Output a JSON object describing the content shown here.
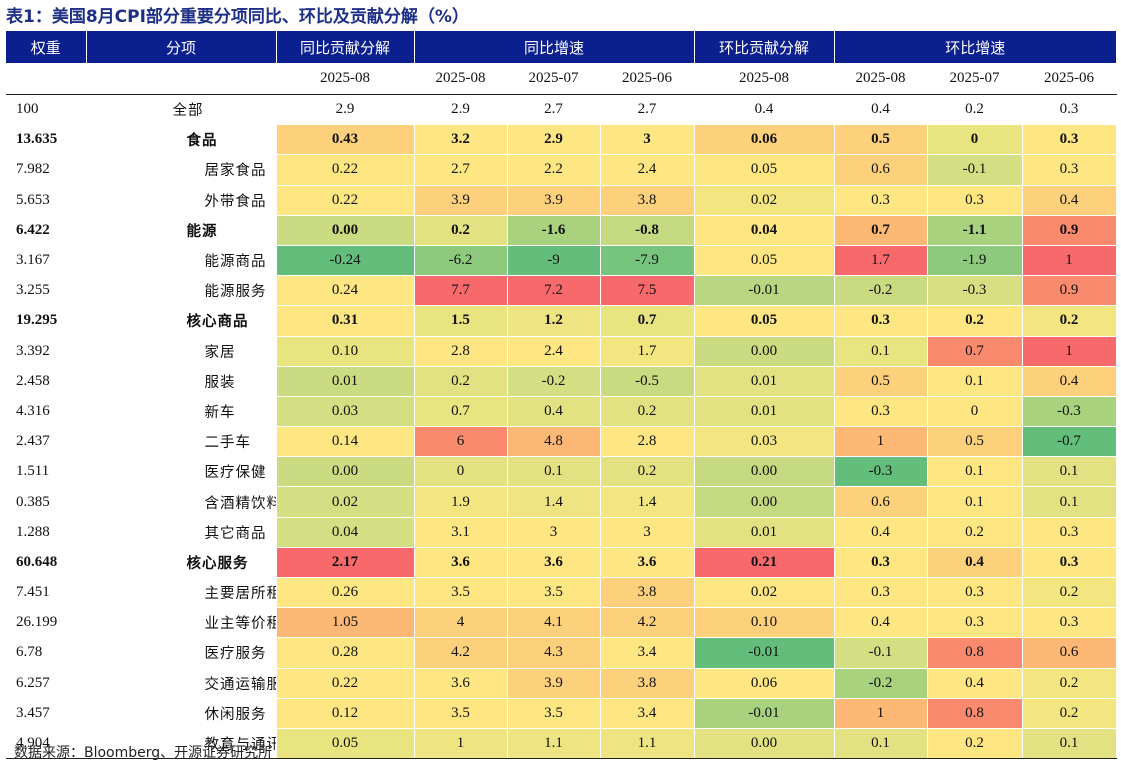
{
  "title": "表1：美国8月CPI部分重要分项同比、环比及贡献分解（%）",
  "header": {
    "weight": "权重",
    "item": "分项",
    "yoy_contrib": "同比贡献分解",
    "yoy_growth": "同比增速",
    "mom_contrib": "环比贡献分解",
    "mom_growth": "环比增速"
  },
  "periods": [
    "2025-08",
    "2025-08",
    "2025-07",
    "2025-06",
    "2025-08",
    "2025-08",
    "2025-07",
    "2025-06"
  ],
  "rows": [
    {
      "weight": "100",
      "name": "全部",
      "level": 0,
      "bold": false,
      "values": [
        "2.9",
        "2.9",
        "2.7",
        "2.7",
        "0.4",
        "0.4",
        "0.2",
        "0.3"
      ],
      "colors": [
        "#ffffff",
        "#ffffff",
        "#ffffff",
        "#ffffff",
        "#ffffff",
        "#ffffff",
        "#ffffff",
        "#ffffff"
      ]
    },
    {
      "weight": "13.635",
      "name": "食品",
      "level": 1,
      "bold": true,
      "values": [
        "0.43",
        "3.2",
        "2.9",
        "3",
        "0.06",
        "0.5",
        "0",
        "0.3"
      ],
      "colors": [
        "#fdd07c",
        "#fee783",
        "#fee783",
        "#fee783",
        "#fdd07c",
        "#fdd07c",
        "#e8e480",
        "#fee783"
      ]
    },
    {
      "weight": "7.982",
      "name": "居家食品",
      "level": 2,
      "bold": false,
      "values": [
        "0.22",
        "2.7",
        "2.2",
        "2.4",
        "0.05",
        "0.6",
        "-0.1",
        "0.3"
      ],
      "colors": [
        "#fee783",
        "#fee783",
        "#fee783",
        "#fee783",
        "#fee783",
        "#fdd07c",
        "#d4de82",
        "#fee783"
      ]
    },
    {
      "weight": "5.653",
      "name": "外带食品",
      "level": 2,
      "bold": false,
      "values": [
        "0.22",
        "3.9",
        "3.9",
        "3.8",
        "0.02",
        "0.3",
        "0.3",
        "0.4"
      ],
      "colors": [
        "#fee783",
        "#fdd07c",
        "#fdd07c",
        "#fdd07c",
        "#f3e681",
        "#fee783",
        "#fee783",
        "#fdd07c"
      ]
    },
    {
      "weight": "6.422",
      "name": "能源",
      "level": 1,
      "bold": true,
      "values": [
        "0.00",
        "0.2",
        "-1.6",
        "-0.8",
        "0.04",
        "0.7",
        "-1.1",
        "0.9"
      ],
      "colors": [
        "#cbdb81",
        "#e2e283",
        "#a9d27f",
        "#c5d981",
        "#fee783",
        "#fcb874",
        "#a9d27f",
        "#f98a6e"
      ]
    },
    {
      "weight": "3.167",
      "name": "能源商品",
      "level": 2,
      "bold": false,
      "values": [
        "-0.24",
        "-6.2",
        "-9",
        "-7.9",
        "0.05",
        "1.7",
        "-1.9",
        "1"
      ],
      "colors": [
        "#63be7b",
        "#8dca7e",
        "#63be7b",
        "#77c47d",
        "#fee783",
        "#f8696b",
        "#8dca7e",
        "#f8696b"
      ]
    },
    {
      "weight": "3.255",
      "name": "能源服务",
      "level": 2,
      "bold": false,
      "values": [
        "0.24",
        "7.7",
        "7.2",
        "7.5",
        "-0.01",
        "-0.2",
        "-0.3",
        "0.9"
      ],
      "colors": [
        "#fee783",
        "#f8696b",
        "#f8696b",
        "#f8696b",
        "#b9d680",
        "#c9da81",
        "#d8df82",
        "#f98a6e"
      ]
    },
    {
      "weight": "19.295",
      "name": "核心商品",
      "level": 1,
      "bold": true,
      "values": [
        "0.31",
        "1.5",
        "1.2",
        "0.7",
        "0.05",
        "0.3",
        "0.2",
        "0.2"
      ],
      "colors": [
        "#fee783",
        "#e8e480",
        "#eee582",
        "#e8e480",
        "#fee783",
        "#fee783",
        "#fee783",
        "#f3e681"
      ]
    },
    {
      "weight": "3.392",
      "name": "家居",
      "level": 2,
      "bold": false,
      "values": [
        "0.10",
        "2.8",
        "2.4",
        "1.7",
        "0.00",
        "0.1",
        "0.7",
        "1"
      ],
      "colors": [
        "#e8e480",
        "#fee783",
        "#fee783",
        "#f3e681",
        "#cbdb81",
        "#e8e480",
        "#f98a6e",
        "#f8696b"
      ]
    },
    {
      "weight": "2.458",
      "name": "服装",
      "level": 2,
      "bold": false,
      "values": [
        "0.01",
        "0.2",
        "-0.2",
        "-0.5",
        "0.01",
        "0.5",
        "0.1",
        "0.4"
      ],
      "colors": [
        "#cbdb81",
        "#e2e283",
        "#d4de82",
        "#c9da81",
        "#e2e283",
        "#fdd07c",
        "#fee783",
        "#fdd07c"
      ]
    },
    {
      "weight": "4.316",
      "name": "新车",
      "level": 2,
      "bold": false,
      "values": [
        "0.03",
        "0.7",
        "0.4",
        "0.2",
        "0.01",
        "0.3",
        "0",
        "-0.3"
      ],
      "colors": [
        "#d4de82",
        "#e8e480",
        "#e2e283",
        "#e2e283",
        "#e2e283",
        "#fee783",
        "#fee783",
        "#a9d27f"
      ]
    },
    {
      "weight": "2.437",
      "name": "二手车",
      "level": 2,
      "bold": false,
      "values": [
        "0.14",
        "6",
        "4.8",
        "2.8",
        "0.03",
        "1",
        "0.5",
        "-0.7"
      ],
      "colors": [
        "#fee783",
        "#f98a6e",
        "#fcb874",
        "#fee783",
        "#f3e681",
        "#fcb874",
        "#fdd07c",
        "#63be7b"
      ]
    },
    {
      "weight": "1.511",
      "name": "医疗保健",
      "level": 2,
      "bold": false,
      "values": [
        "0.00",
        "0",
        "0.1",
        "0.2",
        "0.00",
        "-0.3",
        "0.1",
        "0.1"
      ],
      "colors": [
        "#cbdb81",
        "#e2e283",
        "#e2e283",
        "#e2e283",
        "#c5d981",
        "#63be7b",
        "#fee783",
        "#e2e283"
      ]
    },
    {
      "weight": "0.385",
      "name": "含酒精饮料",
      "level": 2,
      "bold": false,
      "values": [
        "0.02",
        "1.9",
        "1.4",
        "1.4",
        "0.00",
        "0.6",
        "0.1",
        "0.1"
      ],
      "colors": [
        "#d4de82",
        "#f3e681",
        "#eee582",
        "#f3e681",
        "#c5d981",
        "#fdd07c",
        "#fee783",
        "#e2e283"
      ]
    },
    {
      "weight": "1.288",
      "name": "其它商品",
      "level": 2,
      "bold": false,
      "values": [
        "0.04",
        "3.1",
        "3",
        "3",
        "0.01",
        "0.4",
        "0.2",
        "0.3"
      ],
      "colors": [
        "#d4de82",
        "#fee783",
        "#fee783",
        "#fee783",
        "#e2e283",
        "#fee783",
        "#fee783",
        "#fee783"
      ]
    },
    {
      "weight": "60.648",
      "name": "核心服务",
      "level": 1,
      "bold": true,
      "values": [
        "2.17",
        "3.6",
        "3.6",
        "3.6",
        "0.21",
        "0.3",
        "0.4",
        "0.3"
      ],
      "colors": [
        "#f8696b",
        "#fee783",
        "#fee783",
        "#fee783",
        "#f8696b",
        "#fee783",
        "#fdd07c",
        "#fee783"
      ]
    },
    {
      "weight": "7.451",
      "name": "主要居所租金",
      "level": 2,
      "bold": false,
      "values": [
        "0.26",
        "3.5",
        "3.5",
        "3.8",
        "0.02",
        "0.3",
        "0.3",
        "0.2"
      ],
      "colors": [
        "#fee783",
        "#fee783",
        "#fee783",
        "#fdd07c",
        "#fee783",
        "#fee783",
        "#fee783",
        "#f3e681"
      ]
    },
    {
      "weight": "26.199",
      "name": "业主等价租金",
      "level": 2,
      "bold": false,
      "values": [
        "1.05",
        "4",
        "4.1",
        "4.2",
        "0.10",
        "0.4",
        "0.3",
        "0.3"
      ],
      "colors": [
        "#fcb874",
        "#fdd07c",
        "#fdd07c",
        "#fdd07c",
        "#fdd07c",
        "#fee783",
        "#fee783",
        "#fee783"
      ]
    },
    {
      "weight": "6.78",
      "name": "医疗服务",
      "level": 2,
      "bold": false,
      "values": [
        "0.28",
        "4.2",
        "4.3",
        "3.4",
        "-0.01",
        "-0.1",
        "0.8",
        "0.6"
      ],
      "colors": [
        "#fee783",
        "#fdd07c",
        "#fdd07c",
        "#fee783",
        "#63be7b",
        "#d4de82",
        "#f98a6e",
        "#fcb874"
      ]
    },
    {
      "weight": "6.257",
      "name": "交通运输服务",
      "level": 2,
      "bold": false,
      "values": [
        "0.22",
        "3.6",
        "3.9",
        "3.8",
        "0.06",
        "-0.2",
        "0.4",
        "0.2"
      ],
      "colors": [
        "#fee783",
        "#fee783",
        "#fdd07c",
        "#fdd07c",
        "#fee783",
        "#a9d27f",
        "#fee783",
        "#f3e681"
      ]
    },
    {
      "weight": "3.457",
      "name": "休闲服务",
      "level": 2,
      "bold": false,
      "values": [
        "0.12",
        "3.5",
        "3.5",
        "3.4",
        "-0.01",
        "1",
        "0.8",
        "0.2"
      ],
      "colors": [
        "#fee783",
        "#fee783",
        "#fee783",
        "#fee783",
        "#a9d27f",
        "#fcb874",
        "#f98a6e",
        "#f3e681"
      ]
    },
    {
      "weight": "4.904",
      "name": "教育与通讯服务",
      "level": 2,
      "bold": false,
      "values": [
        "0.05",
        "1",
        "1.1",
        "1.1",
        "0.00",
        "0.1",
        "0.2",
        "0.1"
      ],
      "colors": [
        "#e8e480",
        "#eee582",
        "#eee582",
        "#eee582",
        "#e2e283",
        "#e2e283",
        "#fee783",
        "#e2e283"
      ]
    }
  ],
  "source": "数据来源：Bloomberg、开源证券研究所"
}
